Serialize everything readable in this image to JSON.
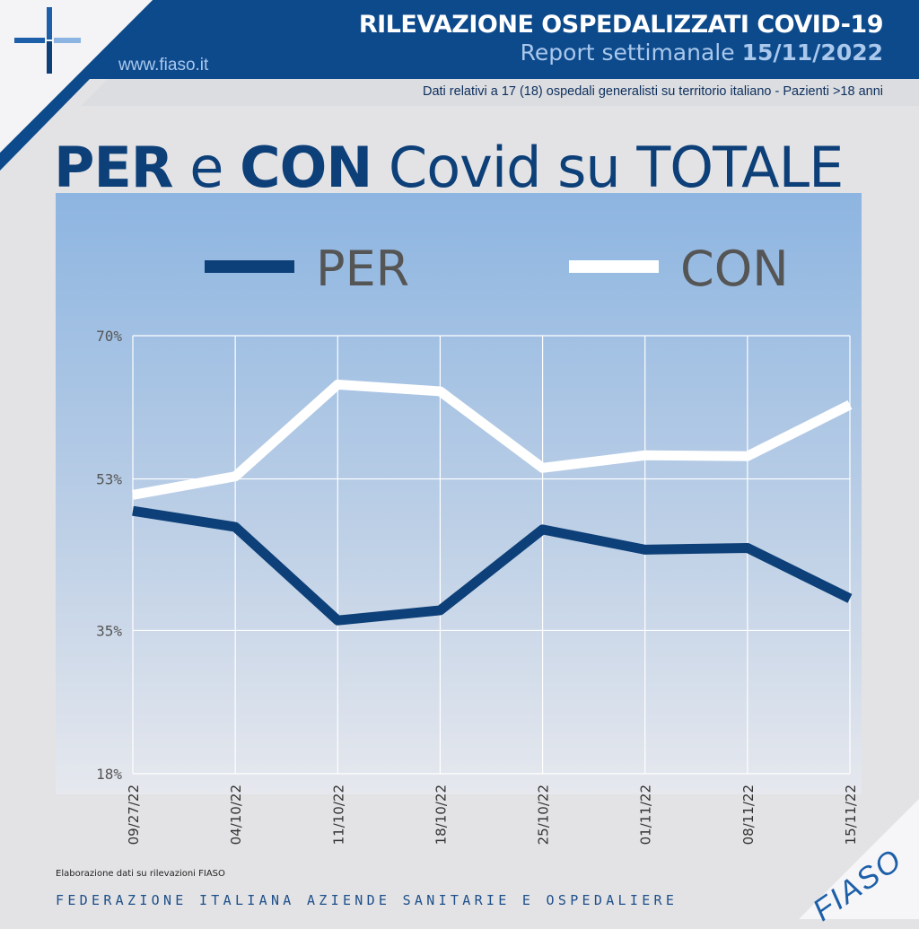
{
  "header": {
    "title": "RILEVAZIONE OSPEDALIZZATI COVID-19",
    "report_label": "Report settimanale",
    "report_date": "15/11/2022",
    "website": "www.fiaso.it",
    "subtitle": "Dati relativi a 17 (18) ospedali generalisti su territorio italiano - Pazienti >18 anni"
  },
  "main_title": {
    "per": "PER",
    "e": " e ",
    "con": "CON",
    "rest": " Covid su TOTALE"
  },
  "chart_data": {
    "type": "line",
    "title": "PER e CON Covid su TOTALE",
    "x": [
      "09/27/22",
      "04/10/22",
      "11/10/22",
      "18/10/22",
      "25/10/22",
      "01/11/22",
      "08/11/22",
      "15/11/22"
    ],
    "series": [
      {
        "name": "PER",
        "color": "#0d3f78",
        "values": [
          49.2,
          47.3,
          36.2,
          37.4,
          47.0,
          44.6,
          44.8,
          38.8
        ]
      },
      {
        "name": "CON",
        "color": "#ffffff",
        "values": [
          51.1,
          53.3,
          64.2,
          63.4,
          54.3,
          55.8,
          55.7,
          61.8
        ]
      }
    ],
    "yticks": [
      70,
      53,
      35,
      18
    ],
    "ytick_labels": [
      "70%",
      "53%",
      "35%",
      "18%"
    ],
    "ylim": [
      18,
      70
    ],
    "grid": true,
    "legend_placement": "top"
  },
  "footer": {
    "credit": "Elaborazione dati su rilevazioni FIASO",
    "org": "FEDERAZIONE ITALIANA AZIENDE SANITARIE E OSPEDALIERE",
    "logo_text": "FIASO"
  },
  "colors": {
    "brand": "#0d4a8c",
    "dark": "#0d3f78",
    "light": "#a9c8ec"
  }
}
